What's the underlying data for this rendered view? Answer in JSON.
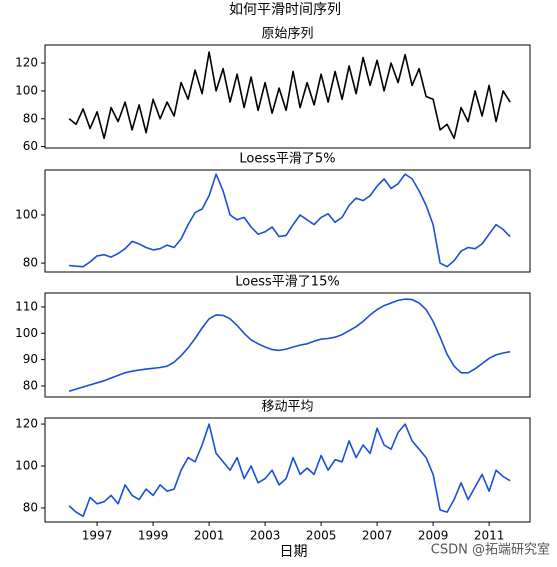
{
  "title": "如何平滑时间序列",
  "watermark": "CSDN @拓端研究室",
  "chart_data": [
    {
      "type": "line",
      "title": "原始序列",
      "color": "#000000",
      "x": [
        1996,
        1996.25,
        1996.5,
        1996.75,
        1997,
        1997.25,
        1997.5,
        1997.75,
        1998,
        1998.25,
        1998.5,
        1998.75,
        1999,
        1999.25,
        1999.5,
        1999.75,
        2000,
        2000.25,
        2000.5,
        2000.75,
        2001,
        2001.25,
        2001.5,
        2001.75,
        2002,
        2002.25,
        2002.5,
        2002.75,
        2003,
        2003.25,
        2003.5,
        2003.75,
        2004,
        2004.25,
        2004.5,
        2004.75,
        2005,
        2005.25,
        2005.5,
        2005.75,
        2006,
        2006.25,
        2006.5,
        2006.75,
        2007,
        2007.25,
        2007.5,
        2007.75,
        2008,
        2008.25,
        2008.5,
        2008.75,
        2009,
        2009.25,
        2009.5,
        2009.75,
        2010,
        2010.25,
        2010.5,
        2010.75,
        2011,
        2011.25,
        2011.5,
        2011.75
      ],
      "values": [
        80,
        76,
        87,
        73,
        85,
        66,
        88,
        78,
        92,
        72,
        90,
        70,
        94,
        80,
        92,
        82,
        106,
        94,
        115,
        98,
        128,
        100,
        116,
        92,
        112,
        88,
        110,
        86,
        106,
        84,
        102,
        86,
        114,
        88,
        106,
        90,
        112,
        92,
        114,
        94,
        118,
        98,
        124,
        104,
        122,
        100,
        120,
        106,
        126,
        104,
        116,
        96,
        94,
        72,
        76,
        66,
        88,
        78,
        100,
        82,
        104,
        78,
        100,
        92
      ],
      "xlim": [
        1995.14,
        2012.46
      ],
      "ylim": [
        59,
        133
      ],
      "yticks": [
        60,
        80,
        100,
        120
      ]
    },
    {
      "type": "line",
      "title": "Loess平滑了5%",
      "color": "#1a4fd6",
      "x": [
        1996,
        1996.25,
        1996.5,
        1996.75,
        1997,
        1997.25,
        1997.5,
        1997.75,
        1998,
        1998.25,
        1998.5,
        1998.75,
        1999,
        1999.25,
        1999.5,
        1999.75,
        2000,
        2000.25,
        2000.5,
        2000.75,
        2001,
        2001.25,
        2001.5,
        2001.75,
        2002,
        2002.25,
        2002.5,
        2002.75,
        2003,
        2003.25,
        2003.5,
        2003.75,
        2004,
        2004.25,
        2004.5,
        2004.75,
        2005,
        2005.25,
        2005.5,
        2005.75,
        2006,
        2006.25,
        2006.5,
        2006.75,
        2007,
        2007.25,
        2007.5,
        2007.75,
        2008,
        2008.25,
        2008.5,
        2008.75,
        2009,
        2009.25,
        2009.5,
        2009.75,
        2010,
        2010.25,
        2010.5,
        2010.75,
        2011,
        2011.25,
        2011.5,
        2011.75
      ],
      "values": [
        79,
        78.7,
        78.5,
        80.5,
        83,
        83.5,
        82.5,
        84,
        86,
        89,
        88,
        86.5,
        85.5,
        86,
        87.5,
        86.5,
        90,
        96,
        101,
        102.5,
        108,
        117,
        110,
        100,
        98,
        99,
        95,
        92,
        93,
        95,
        91,
        91.5,
        96,
        100,
        98,
        96,
        99,
        100.5,
        97,
        99,
        104,
        107,
        106,
        108,
        112,
        115,
        111,
        113,
        117,
        115,
        110,
        104,
        96,
        80,
        78.5,
        81,
        85,
        86.5,
        86,
        88,
        92,
        96,
        94,
        91
      ],
      "xlim": [
        1995.14,
        2012.46
      ],
      "ylim": [
        76.3,
        118.7
      ],
      "yticks": [
        80,
        100
      ]
    },
    {
      "type": "line",
      "title": "Loess平滑了15%",
      "color": "#1a4fd6",
      "x": [
        1996,
        1996.25,
        1996.5,
        1996.75,
        1997,
        1997.25,
        1997.5,
        1997.75,
        1998,
        1998.25,
        1998.5,
        1998.75,
        1999,
        1999.25,
        1999.5,
        1999.75,
        2000,
        2000.25,
        2000.5,
        2000.75,
        2001,
        2001.25,
        2001.5,
        2001.75,
        2002,
        2002.25,
        2002.5,
        2002.75,
        2003,
        2003.25,
        2003.5,
        2003.75,
        2004,
        2004.25,
        2004.5,
        2004.75,
        2005,
        2005.25,
        2005.5,
        2005.75,
        2006,
        2006.25,
        2006.5,
        2006.75,
        2007,
        2007.25,
        2007.5,
        2007.75,
        2008,
        2008.25,
        2008.5,
        2008.75,
        2009,
        2009.25,
        2009.5,
        2009.75,
        2010,
        2010.25,
        2010.5,
        2010.75,
        2011,
        2011.25,
        2011.5,
        2011.75
      ],
      "values": [
        78,
        78.8,
        79.6,
        80.4,
        81.2,
        82,
        83,
        84,
        85,
        85.6,
        86,
        86.4,
        86.7,
        87,
        87.5,
        89,
        91.5,
        94.5,
        98,
        102,
        105.5,
        107,
        106.8,
        105.5,
        103,
        100,
        97.5,
        96,
        94.8,
        93.8,
        93.5,
        94,
        94.8,
        95.5,
        96,
        97,
        97.8,
        98,
        98.5,
        99.5,
        101,
        102.5,
        104.5,
        107,
        109,
        110.5,
        111.5,
        112.5,
        113,
        112.8,
        111.5,
        109,
        104.5,
        98.5,
        92,
        87.5,
        85,
        85,
        86.5,
        88.5,
        90.5,
        91.8,
        92.5,
        93
      ],
      "xlim": [
        1995.14,
        2012.46
      ],
      "ylim": [
        75.8,
        115.3
      ],
      "yticks": [
        80,
        90,
        100,
        110
      ]
    },
    {
      "type": "line",
      "title": "移动平均",
      "color": "#1a4fd6",
      "xlabel": "日期",
      "x": [
        1996,
        1996.25,
        1996.5,
        1996.75,
        1997,
        1997.25,
        1997.5,
        1997.75,
        1998,
        1998.25,
        1998.5,
        1998.75,
        1999,
        1999.25,
        1999.5,
        1999.75,
        2000,
        2000.25,
        2000.5,
        2000.75,
        2001,
        2001.25,
        2001.5,
        2001.75,
        2002,
        2002.25,
        2002.5,
        2002.75,
        2003,
        2003.25,
        2003.5,
        2003.75,
        2004,
        2004.25,
        2004.5,
        2004.75,
        2005,
        2005.25,
        2005.5,
        2005.75,
        2006,
        2006.25,
        2006.5,
        2006.75,
        2007,
        2007.25,
        2007.5,
        2007.75,
        2008,
        2008.25,
        2008.5,
        2008.75,
        2009,
        2009.25,
        2009.5,
        2009.75,
        2010,
        2010.25,
        2010.5,
        2010.75,
        2011,
        2011.25,
        2011.5,
        2011.75
      ],
      "values": [
        81,
        78,
        76,
        85,
        82,
        83,
        86,
        82,
        91,
        86,
        84,
        89,
        86,
        91,
        88,
        89,
        98,
        104,
        102,
        110,
        120,
        106,
        102,
        98,
        104,
        94,
        100,
        92,
        94,
        98,
        91,
        94,
        104,
        96,
        99,
        96,
        105,
        98,
        103,
        102,
        112,
        104,
        110,
        106,
        118,
        110,
        108,
        116,
        120,
        112,
        108,
        104,
        96,
        79,
        78,
        84,
        92,
        84,
        90,
        96,
        88,
        98,
        95,
        93
      ],
      "xlim": [
        1995.14,
        2012.46
      ],
      "ylim": [
        73.3,
        122.9
      ],
      "yticks": [
        80,
        100,
        120
      ],
      "xticks": [
        1997,
        1999,
        2001,
        2003,
        2005,
        2007,
        2009,
        2011
      ]
    }
  ]
}
